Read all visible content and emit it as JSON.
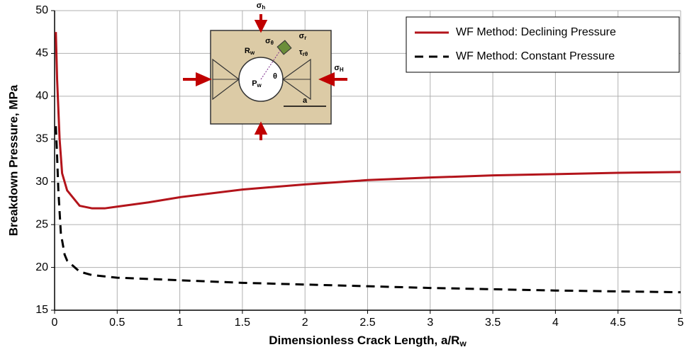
{
  "chart_data": {
    "type": "line",
    "ylabel": "Breakdown Pressure, MPa",
    "xlabel": "Dimensionless Crack Length, a/R",
    "xlabel_subscript": "w",
    "xlim": [
      0,
      5
    ],
    "xticks": [
      0,
      0.5,
      1,
      1.5,
      2,
      2.5,
      3,
      3.5,
      4,
      4.5,
      5
    ],
    "ylim": [
      15,
      50
    ],
    "yticks": [
      15,
      20,
      25,
      30,
      35,
      40,
      45,
      50
    ],
    "grid": true,
    "legend": "upper-right",
    "series": [
      {
        "name": "WF Method: Declining Pressure",
        "color": "#b3141b",
        "dash": "solid",
        "x": [
          0.01,
          0.02,
          0.04,
          0.06,
          0.1,
          0.2,
          0.3,
          0.4,
          0.5,
          0.75,
          1,
          1.5,
          2,
          2.5,
          3,
          3.5,
          4,
          4.5,
          5
        ],
        "values": [
          47.5,
          42,
          35,
          31,
          29,
          27.2,
          26.9,
          26.9,
          27.1,
          27.6,
          28.2,
          29.1,
          29.7,
          30.2,
          30.5,
          30.75,
          30.9,
          31.05,
          31.15
        ]
      },
      {
        "name": "WF Method: Constant Pressure",
        "color": "#000000",
        "dash": "dashed",
        "x": [
          0.01,
          0.02,
          0.03,
          0.05,
          0.08,
          0.1,
          0.2,
          0.3,
          0.5,
          1,
          1.5,
          2,
          2.5,
          3,
          3.5,
          4,
          4.5,
          5
        ],
        "values": [
          36.5,
          33,
          29,
          24,
          21.5,
          20.8,
          19.5,
          19.1,
          18.8,
          18.5,
          18.2,
          18.0,
          17.8,
          17.6,
          17.45,
          17.3,
          17.2,
          17.1
        ]
      }
    ],
    "inset_labels": [
      {
        "text": "σ",
        "sub": "h"
      },
      {
        "text": "σ",
        "sub": "H"
      },
      {
        "text": "R",
        "sub": "w"
      },
      {
        "text": "P",
        "sub": "w"
      },
      {
        "text": "σ",
        "sub": "θ"
      },
      {
        "text": "σ",
        "sub": "r"
      },
      {
        "text": "τ",
        "sub": "rθ"
      },
      {
        "text": "θ",
        "sub": ""
      },
      {
        "text": "a",
        "sub": ""
      }
    ]
  }
}
